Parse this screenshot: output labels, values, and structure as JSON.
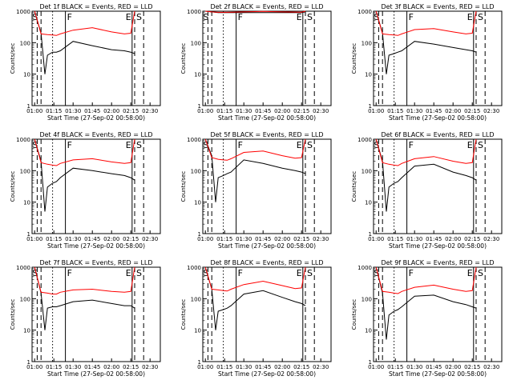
{
  "chart_data": [
    {
      "type": "line",
      "title": "Det 1f BLACK = Events, RED = LLD",
      "xlabel": "Start Time (27-Sep-02 00:58:00)",
      "ylabel": "Counts/sec",
      "flags": [
        "S",
        "F",
        "E",
        "S"
      ],
      "x_ticks": [
        "01:00",
        "01:15",
        "01:30",
        "01:45",
        "02:00",
        "02:15",
        "02:30"
      ],
      "y_ticks": [
        "1",
        "10",
        "100",
        "1000"
      ],
      "ylim": [
        1,
        1000
      ],
      "log_y": true,
      "series": [
        {
          "name": "Events",
          "color": "#000000",
          "x": [
            "01:00",
            "01:05",
            "01:08",
            "01:10",
            "01:14",
            "01:17",
            "01:20",
            "01:30",
            "01:45",
            "02:00",
            "02:10",
            "02:15",
            "02:18"
          ],
          "y": [
            1000,
            200,
            10,
            40,
            50,
            50,
            55,
            110,
            80,
            60,
            55,
            50,
            45
          ]
        },
        {
          "name": "LLD",
          "color": "#ff0000",
          "x": [
            "01:00",
            "01:05",
            "01:10",
            "01:14",
            "01:17",
            "01:20",
            "01:30",
            "01:45",
            "02:00",
            "02:10",
            "02:15",
            "02:18"
          ],
          "y": [
            1000,
            190,
            180,
            175,
            170,
            190,
            250,
            300,
            220,
            190,
            200,
            1000
          ]
        }
      ]
    },
    {
      "type": "line",
      "title": "Det 2f BLACK = Events, RED = LLD",
      "xlabel": "Start Time (27-Sep-02 00:58:00)",
      "ylabel": "Counts/sec",
      "flags": [
        "S",
        "F",
        "E",
        "S"
      ],
      "x_ticks": [
        "01:00",
        "01:15",
        "01:30",
        "01:45",
        "02:00",
        "02:15",
        "02:30"
      ],
      "y_ticks": [
        "1",
        "10",
        "100",
        "1000"
      ],
      "ylim": [
        1,
        1000
      ],
      "log_y": true,
      "series": [
        {
          "name": "Events",
          "color": "#000000",
          "x": [
            "01:00",
            "01:05",
            "01:10",
            "01:17",
            "01:30",
            "01:45",
            "02:00",
            "02:15",
            "02:18"
          ],
          "y": [
            1000,
            950,
            900,
            900,
            900,
            900,
            900,
            900,
            950
          ]
        },
        {
          "name": "LLD",
          "color": "#ff0000",
          "x": [
            "01:00",
            "01:05",
            "01:10",
            "01:17",
            "01:30",
            "01:45",
            "02:00",
            "02:15",
            "02:18"
          ],
          "y": [
            1000,
            950,
            920,
            920,
            950,
            980,
            950,
            930,
            1000
          ]
        }
      ]
    },
    {
      "type": "line",
      "title": "Det 3f BLACK = Events, RED = LLD",
      "xlabel": "Start Time (27-Sep-02 00:58:00)",
      "ylabel": "Counts/sec",
      "flags": [
        "S",
        "F",
        "E",
        "S"
      ],
      "x_ticks": [
        "01:00",
        "01:15",
        "01:30",
        "01:45",
        "02:00",
        "02:15",
        "02:30"
      ],
      "y_ticks": [
        "1",
        "10",
        "100",
        "1000"
      ],
      "ylim": [
        1,
        1000
      ],
      "log_y": true,
      "series": [
        {
          "name": "Events",
          "color": "#000000",
          "x": [
            "01:00",
            "01:05",
            "01:08",
            "01:10",
            "01:14",
            "01:17",
            "01:20",
            "01:30",
            "01:45",
            "02:00",
            "02:10",
            "02:15",
            "02:18"
          ],
          "y": [
            1000,
            200,
            10,
            40,
            45,
            50,
            55,
            110,
            90,
            70,
            60,
            55,
            50
          ]
        },
        {
          "name": "LLD",
          "color": "#ff0000",
          "x": [
            "01:00",
            "01:05",
            "01:10",
            "01:14",
            "01:17",
            "01:20",
            "01:30",
            "01:45",
            "02:00",
            "02:10",
            "02:15",
            "02:18"
          ],
          "y": [
            1000,
            190,
            180,
            175,
            170,
            190,
            260,
            280,
            220,
            190,
            200,
            1000
          ]
        }
      ]
    },
    {
      "type": "line",
      "title": "Det 4f BLACK = Events, RED = LLD",
      "xlabel": "Start Time (27-Sep-02 00:58:00)",
      "ylabel": "Counts/sec",
      "flags": [
        "S",
        "F",
        "E",
        "S"
      ],
      "x_ticks": [
        "01:00",
        "01:15",
        "01:30",
        "01:45",
        "02:00",
        "02:15",
        "02:30"
      ],
      "y_ticks": [
        "1",
        "10",
        "100",
        "1000"
      ],
      "ylim": [
        1,
        1000
      ],
      "log_y": true,
      "series": [
        {
          "name": "Events",
          "color": "#000000",
          "x": [
            "01:00",
            "01:05",
            "01:08",
            "01:10",
            "01:14",
            "01:17",
            "01:20",
            "01:30",
            "01:45",
            "02:00",
            "02:10",
            "02:15",
            "02:18"
          ],
          "y": [
            1000,
            200,
            5,
            30,
            40,
            45,
            60,
            120,
            100,
            80,
            70,
            60,
            50
          ]
        },
        {
          "name": "LLD",
          "color": "#ff0000",
          "x": [
            "01:00",
            "01:05",
            "01:10",
            "01:14",
            "01:17",
            "01:20",
            "01:30",
            "01:45",
            "02:00",
            "02:10",
            "02:15",
            "02:18"
          ],
          "y": [
            1000,
            180,
            160,
            150,
            145,
            170,
            220,
            240,
            190,
            170,
            180,
            1000
          ]
        }
      ]
    },
    {
      "type": "line",
      "title": "Det 5f BLACK = Events, RED = LLD",
      "xlabel": "Start Time (27-Sep-02 00:58:00)",
      "ylabel": "Counts/sec",
      "flags": [
        "S",
        "F",
        "E",
        "S"
      ],
      "x_ticks": [
        "01:00",
        "01:15",
        "01:30",
        "01:45",
        "02:00",
        "02:15",
        "02:30"
      ],
      "y_ticks": [
        "1",
        "10",
        "100",
        "1000"
      ],
      "ylim": [
        1,
        1000
      ],
      "log_y": true,
      "series": [
        {
          "name": "Events",
          "color": "#000000",
          "x": [
            "01:00",
            "01:05",
            "01:08",
            "01:10",
            "01:14",
            "01:17",
            "01:20",
            "01:30",
            "01:45",
            "02:00",
            "02:10",
            "02:15",
            "02:18"
          ],
          "y": [
            1000,
            300,
            10,
            60,
            70,
            80,
            90,
            220,
            170,
            120,
            100,
            90,
            80
          ]
        },
        {
          "name": "LLD",
          "color": "#ff0000",
          "x": [
            "01:00",
            "01:05",
            "01:10",
            "01:14",
            "01:17",
            "01:20",
            "01:30",
            "01:45",
            "02:00",
            "02:10",
            "02:15",
            "02:18"
          ],
          "y": [
            1000,
            260,
            230,
            220,
            215,
            240,
            380,
            420,
            300,
            250,
            260,
            1000
          ]
        }
      ]
    },
    {
      "type": "line",
      "title": "Det 6f BLACK = Events, RED = LLD",
      "xlabel": "Start Time (27-Sep-02 00:58:00)",
      "ylabel": "Counts/sec",
      "flags": [
        "S",
        "F",
        "E",
        "S"
      ],
      "x_ticks": [
        "01:00",
        "01:15",
        "01:30",
        "01:45",
        "02:00",
        "02:15",
        "02:30"
      ],
      "y_ticks": [
        "1",
        "10",
        "100",
        "1000"
      ],
      "ylim": [
        1,
        1000
      ],
      "log_y": true,
      "series": [
        {
          "name": "Events",
          "color": "#000000",
          "x": [
            "01:00",
            "01:05",
            "01:08",
            "01:10",
            "01:14",
            "01:17",
            "01:20",
            "01:30",
            "01:45",
            "02:00",
            "02:10",
            "02:15",
            "02:18"
          ],
          "y": [
            1000,
            200,
            5,
            30,
            40,
            45,
            60,
            140,
            160,
            90,
            70,
            60,
            50
          ]
        },
        {
          "name": "LLD",
          "color": "#ff0000",
          "x": [
            "01:00",
            "01:05",
            "01:10",
            "01:14",
            "01:17",
            "01:20",
            "01:30",
            "01:45",
            "02:00",
            "02:10",
            "02:15",
            "02:18"
          ],
          "y": [
            1000,
            180,
            160,
            150,
            145,
            170,
            240,
            280,
            200,
            170,
            180,
            1000
          ]
        }
      ]
    },
    {
      "type": "line",
      "title": "Det 7f BLACK = Events, RED = LLD",
      "xlabel": "Start Time (27-Sep-02 00:58:00)",
      "ylabel": "Counts/sec",
      "flags": [
        "S",
        "F",
        "E",
        "S"
      ],
      "x_ticks": [
        "01:00",
        "01:15",
        "01:30",
        "01:45",
        "02:00",
        "02:15",
        "02:30"
      ],
      "y_ticks": [
        "1",
        "10",
        "100",
        "1000"
      ],
      "ylim": [
        1,
        1000
      ],
      "log_y": true,
      "series": [
        {
          "name": "Events",
          "color": "#000000",
          "x": [
            "01:00",
            "01:05",
            "01:08",
            "01:10",
            "01:14",
            "01:17",
            "01:20",
            "01:30",
            "01:45",
            "02:00",
            "02:10",
            "02:15",
            "02:18"
          ],
          "y": [
            1000,
            150,
            10,
            50,
            55,
            55,
            60,
            80,
            90,
            70,
            60,
            60,
            50
          ]
        },
        {
          "name": "LLD",
          "color": "#ff0000",
          "x": [
            "01:00",
            "01:05",
            "01:10",
            "01:14",
            "01:17",
            "01:20",
            "01:30",
            "01:45",
            "02:00",
            "02:10",
            "02:15",
            "02:18"
          ],
          "y": [
            1000,
            160,
            150,
            140,
            140,
            160,
            190,
            200,
            170,
            160,
            170,
            1000
          ]
        }
      ]
    },
    {
      "type": "line",
      "title": "Det 8f BLACK = Events, RED = LLD",
      "xlabel": "Start Time (27-Sep-02 00:58:00)",
      "ylabel": "Counts/sec",
      "flags": [
        "S",
        "F",
        "E",
        "S"
      ],
      "x_ticks": [
        "01:00",
        "01:15",
        "01:30",
        "01:45",
        "02:00",
        "02:15",
        "02:30"
      ],
      "y_ticks": [
        "1",
        "10",
        "100",
        "1000"
      ],
      "ylim": [
        1,
        1000
      ],
      "log_y": true,
      "series": [
        {
          "name": "Events",
          "color": "#000000",
          "x": [
            "01:00",
            "01:05",
            "01:08",
            "01:10",
            "01:14",
            "01:17",
            "01:20",
            "01:30",
            "01:45",
            "02:00",
            "02:10",
            "02:15",
            "02:18"
          ],
          "y": [
            1000,
            200,
            10,
            40,
            45,
            50,
            60,
            140,
            180,
            110,
            80,
            70,
            60
          ]
        },
        {
          "name": "LLD",
          "color": "#ff0000",
          "x": [
            "01:00",
            "01:05",
            "01:10",
            "01:14",
            "01:17",
            "01:20",
            "01:30",
            "01:45",
            "02:00",
            "02:10",
            "02:15",
            "02:18"
          ],
          "y": [
            1000,
            200,
            190,
            180,
            175,
            200,
            280,
            360,
            260,
            210,
            220,
            1000
          ]
        }
      ]
    },
    {
      "type": "line",
      "title": "Det 9f BLACK = Events, RED = LLD",
      "xlabel": "Start Time (27-Sep-02 00:58:00)",
      "ylabel": "Counts/sec",
      "flags": [
        "S",
        "F",
        "E",
        "S"
      ],
      "x_ticks": [
        "01:00",
        "01:15",
        "01:30",
        "01:45",
        "02:00",
        "02:15",
        "02:30"
      ],
      "y_ticks": [
        "1",
        "10",
        "100",
        "1000"
      ],
      "ylim": [
        1,
        1000
      ],
      "log_y": true,
      "series": [
        {
          "name": "Events",
          "color": "#000000",
          "x": [
            "01:00",
            "01:05",
            "01:08",
            "01:10",
            "01:14",
            "01:17",
            "01:20",
            "01:30",
            "01:45",
            "02:00",
            "02:10",
            "02:15",
            "02:18"
          ],
          "y": [
            1000,
            150,
            5,
            30,
            40,
            45,
            55,
            120,
            130,
            80,
            65,
            55,
            50
          ]
        },
        {
          "name": "LLD",
          "color": "#ff0000",
          "x": [
            "01:00",
            "01:05",
            "01:10",
            "01:14",
            "01:17",
            "01:20",
            "01:30",
            "01:45",
            "02:00",
            "02:10",
            "02:15",
            "02:18"
          ],
          "y": [
            1000,
            170,
            160,
            150,
            145,
            170,
            230,
            270,
            200,
            170,
            180,
            1000
          ]
        }
      ]
    }
  ]
}
